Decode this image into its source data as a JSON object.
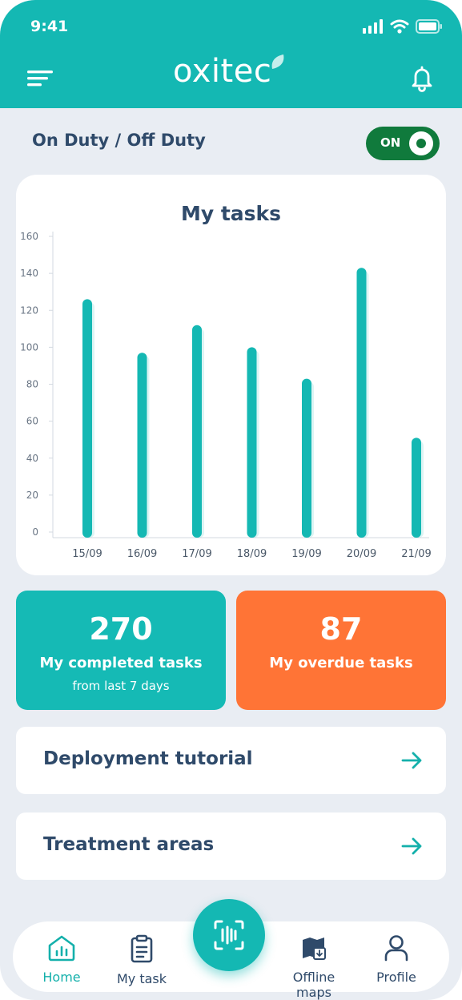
{
  "status_bar": {
    "time": "9:41"
  },
  "header": {
    "logo_text": "oxitec"
  },
  "duty": {
    "label": "On Duty / Off Duty",
    "toggle_text": "ON",
    "state": "on"
  },
  "chart_data": {
    "type": "bar",
    "title": "My tasks",
    "categories": [
      "15/09",
      "16/09",
      "17/09",
      "18/09",
      "19/09",
      "20/09",
      "21/09"
    ],
    "values": [
      126,
      97,
      112,
      100,
      83,
      143,
      51
    ],
    "yticks": [
      0,
      20,
      40,
      60,
      80,
      100,
      120,
      140,
      160
    ],
    "ylim": [
      0,
      160
    ],
    "xlabel": "",
    "ylabel": "",
    "color": "#14b8b3",
    "grid": false
  },
  "stats": {
    "completed": {
      "value": "270",
      "label": "My completed tasks",
      "sub": "from last 7 days",
      "color": "#15bab5"
    },
    "overdue": {
      "value": "87",
      "label": "My overdue tasks",
      "color": "#ff7436"
    }
  },
  "links": [
    {
      "label": "Deployment tutorial"
    },
    {
      "label": "Treatment areas"
    }
  ],
  "nav": {
    "items": [
      {
        "label": "Home",
        "icon": "home-chart-icon",
        "active": true
      },
      {
        "label": "My task",
        "icon": "clipboard-icon",
        "active": false
      },
      {
        "label": "Offline maps",
        "icon": "map-download-icon",
        "active": false
      },
      {
        "label": "Profile",
        "icon": "user-icon",
        "active": false
      }
    ],
    "scan_icon": "scan-icon"
  }
}
